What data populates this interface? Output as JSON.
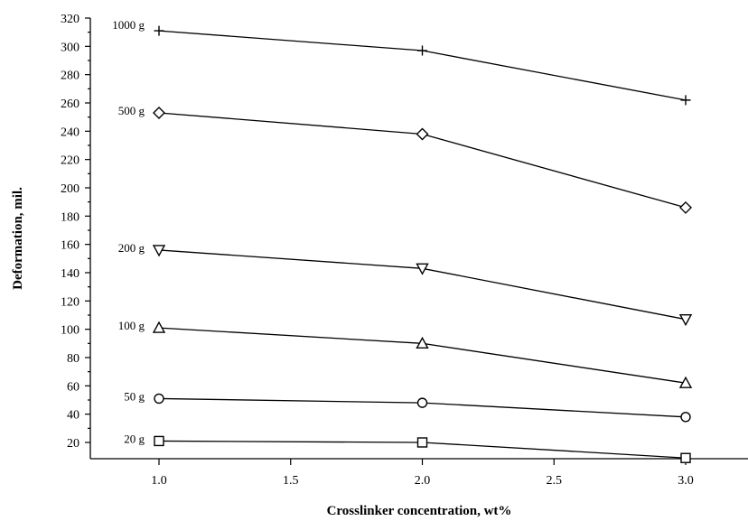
{
  "chart_data": {
    "type": "line",
    "xlabel": "Crosslinker concentration, wt%",
    "ylabel": "Deformation, mil.",
    "xlim": [
      0.75,
      3.25
    ],
    "ylim": [
      10,
      320
    ],
    "xticks": [
      1.0,
      1.5,
      2.0,
      2.5,
      3.0
    ],
    "xtick_labels": [
      "1.0",
      "1.5",
      "2.0",
      "2.5",
      "3.0"
    ],
    "yticks": [
      20,
      40,
      60,
      80,
      100,
      120,
      140,
      160,
      180,
      200,
      220,
      240,
      260,
      280,
      300,
      320
    ],
    "ytick_labels": [
      "20",
      "40",
      "60",
      "80",
      "100",
      "120",
      "140",
      "160",
      "180",
      "200",
      "220",
      "240",
      "260",
      "280",
      "300",
      "320"
    ],
    "x": [
      1.0,
      2.0,
      3.0
    ],
    "grid": false,
    "legend": "none",
    "series": [
      {
        "name": "1000 g",
        "marker": "plus",
        "values": [
          311,
          297,
          262
        ]
      },
      {
        "name": "500 g",
        "marker": "diamond",
        "values": [
          253,
          238,
          186
        ]
      },
      {
        "name": "200 g",
        "marker": "triangle-down",
        "values": [
          156,
          143,
          107
        ]
      },
      {
        "name": "100 g",
        "marker": "triangle-up",
        "values": [
          101,
          90,
          62
        ]
      },
      {
        "name": "50 g",
        "marker": "circle",
        "values": [
          51,
          48,
          38
        ]
      },
      {
        "name": "20 g",
        "marker": "square",
        "values": [
          21,
          20,
          9
        ]
      }
    ]
  }
}
